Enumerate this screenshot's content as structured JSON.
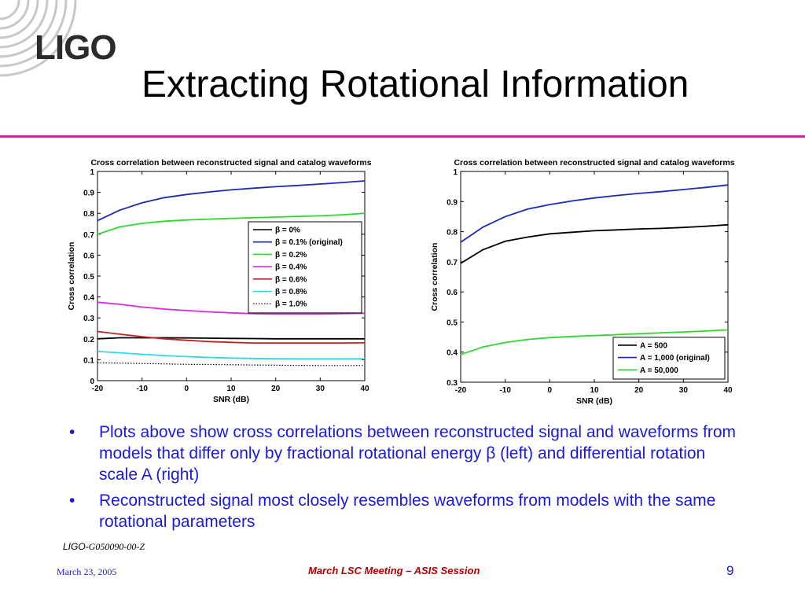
{
  "logo": {
    "text": "LIGO"
  },
  "slide_title": "Extracting Rotational Information",
  "chart_data": [
    {
      "type": "line",
      "title": "Cross correlation between reconstructed signal and catalog waveforms",
      "xlabel": "SNR (dB)",
      "ylabel": "Cross correlation",
      "xlim": [
        -20,
        40
      ],
      "ylim": [
        0,
        1
      ],
      "xticks": [
        "-20",
        "-10",
        "0",
        "10",
        "20",
        "30",
        "40"
      ],
      "yticks": [
        "0",
        "0.1",
        "0.2",
        "0.3",
        "0.4",
        "0.5",
        "0.6",
        "0.7",
        "0.8",
        "0.9",
        "1"
      ],
      "legend_position": "right",
      "x": [
        -20,
        -15,
        -10,
        -5,
        0,
        5,
        10,
        15,
        20,
        25,
        30,
        35,
        40
      ],
      "series": [
        {
          "name": "β = 0%",
          "color": "#000000",
          "dash": "",
          "values": [
            0.2,
            0.205,
            0.205,
            0.205,
            0.204,
            0.203,
            0.202,
            0.201,
            0.2,
            0.2,
            0.2,
            0.2,
            0.2
          ]
        },
        {
          "name": "β = 0.1% (original)",
          "color": "#1a2ab8",
          "dash": "",
          "values": [
            0.765,
            0.815,
            0.85,
            0.875,
            0.89,
            0.902,
            0.912,
            0.92,
            0.927,
            0.933,
            0.94,
            0.947,
            0.955
          ]
        },
        {
          "name": "β = 0.2%",
          "color": "#2fd82f",
          "dash": "",
          "values": [
            0.7,
            0.735,
            0.752,
            0.762,
            0.768,
            0.772,
            0.776,
            0.779,
            0.782,
            0.785,
            0.788,
            0.793,
            0.8
          ]
        },
        {
          "name": "β = 0.4%",
          "color": "#d82ad8",
          "dash": "",
          "values": [
            0.375,
            0.365,
            0.352,
            0.342,
            0.335,
            0.329,
            0.324,
            0.32,
            0.318,
            0.318,
            0.318,
            0.32,
            0.322
          ]
        },
        {
          "name": "β = 0.6%",
          "color": "#c42020",
          "dash": "",
          "values": [
            0.235,
            0.222,
            0.21,
            0.2,
            0.193,
            0.187,
            0.183,
            0.18,
            0.18,
            0.18,
            0.18,
            0.18,
            0.181
          ]
        },
        {
          "name": "β = 0.8%",
          "color": "#2ed8e8",
          "dash": "",
          "values": [
            0.14,
            0.133,
            0.126,
            0.12,
            0.115,
            0.111,
            0.108,
            0.106,
            0.105,
            0.104,
            0.104,
            0.104,
            0.104
          ]
        },
        {
          "name": "β = 1.0%",
          "color": "#000000",
          "dash": "1.5,2",
          "values": [
            0.085,
            0.084,
            0.082,
            0.08,
            0.078,
            0.077,
            0.076,
            0.075,
            0.074,
            0.073,
            0.072,
            0.072,
            0.072
          ]
        }
      ]
    },
    {
      "type": "line",
      "title": "Cross correlation between reconstructed signal and catalog waveforms",
      "xlabel": "SNR (dB)",
      "ylabel": "Cross correlation",
      "xlim": [
        -20,
        40
      ],
      "ylim": [
        0.3,
        1
      ],
      "xticks": [
        "-20",
        "-10",
        "0",
        "10",
        "20",
        "30",
        "40"
      ],
      "yticks": [
        "0.3",
        "0.4",
        "0.5",
        "0.6",
        "0.7",
        "0.8",
        "0.9",
        "1"
      ],
      "legend_position": "bottom-right",
      "x": [
        -20,
        -15,
        -10,
        -5,
        0,
        5,
        10,
        15,
        20,
        25,
        30,
        35,
        40
      ],
      "series": [
        {
          "name": "A = 500",
          "color": "#000000",
          "dash": "",
          "values": [
            0.695,
            0.74,
            0.768,
            0.782,
            0.793,
            0.798,
            0.803,
            0.806,
            0.809,
            0.811,
            0.814,
            0.818,
            0.823
          ]
        },
        {
          "name": "A = 1,000 (original)",
          "color": "#1a2ab8",
          "dash": "",
          "values": [
            0.765,
            0.815,
            0.85,
            0.875,
            0.89,
            0.902,
            0.912,
            0.92,
            0.927,
            0.933,
            0.94,
            0.947,
            0.955
          ]
        },
        {
          "name": "A = 50,000",
          "color": "#2fd82f",
          "dash": "",
          "values": [
            0.392,
            0.417,
            0.432,
            0.442,
            0.448,
            0.452,
            0.455,
            0.458,
            0.461,
            0.464,
            0.467,
            0.47,
            0.474
          ]
        }
      ]
    }
  ],
  "bullets": [
    {
      "bullet": "•",
      "text": "Plots above show cross correlations between reconstructed signal and waveforms from models that differ only by fractional rotational energy β (left) and differential rotation scale A (right)"
    },
    {
      "bullet": "•",
      "text": "Reconstructed signal most closely resembles waveforms from models with the same rotational parameters"
    }
  ],
  "doc_id": {
    "prefix": "LIGO-",
    "number": "G050090-00-Z"
  },
  "footer": {
    "date": "March 23, 2005",
    "event": "March LSC Meeting – ASIS Session",
    "page": "9"
  },
  "colors": {
    "accent_rule": "#cc2a9a",
    "body_text": "#1a1ad8",
    "footer_event": "#b00000"
  }
}
